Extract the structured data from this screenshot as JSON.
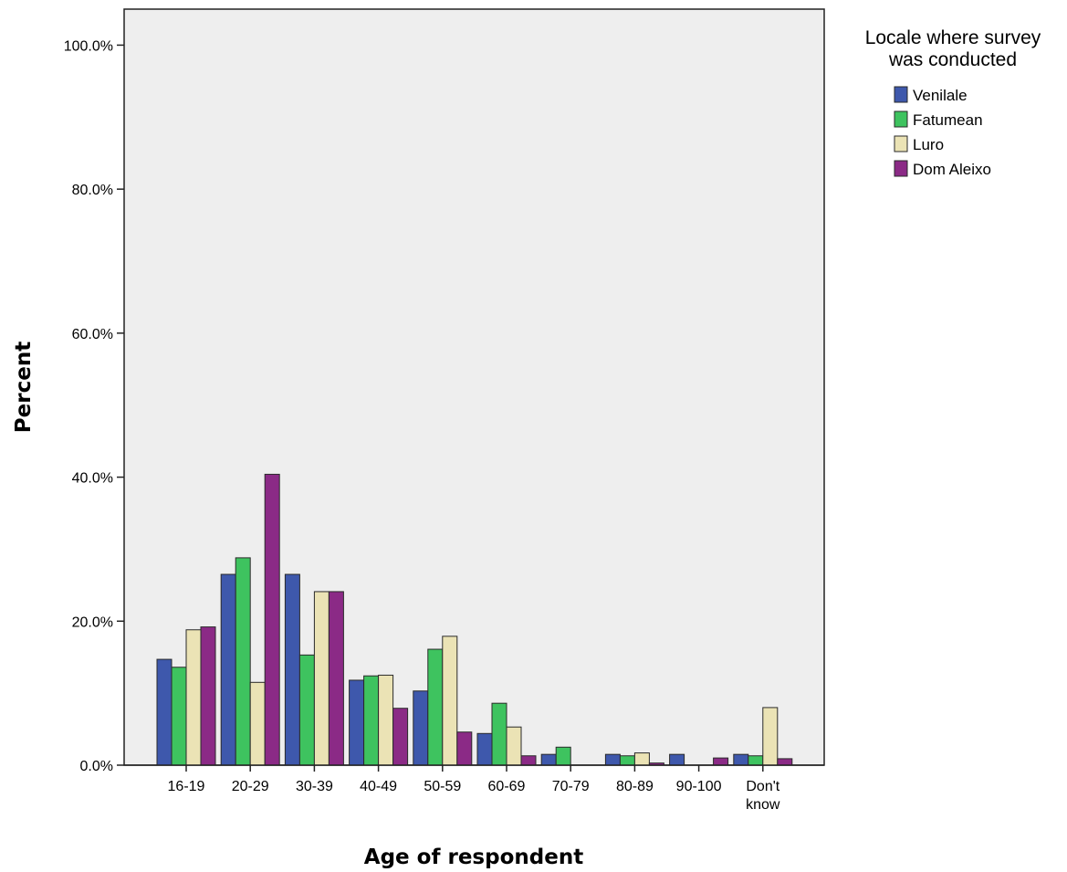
{
  "chart_data": {
    "type": "bar",
    "xlabel": "Age of respondent",
    "ylabel": "Percent",
    "ylim": [
      0,
      105
    ],
    "yticks": [
      0,
      20,
      40,
      60,
      80,
      100
    ],
    "ytick_labels": [
      "0.0%",
      "20.0%",
      "40.0%",
      "60.0%",
      "80.0%",
      "100.0%"
    ],
    "categories": [
      "16-19",
      "20-29",
      "30-39",
      "40-49",
      "50-59",
      "60-69",
      "70-79",
      "80-89",
      "90-100",
      "Don't know"
    ],
    "category_lines": [
      [
        "16-19"
      ],
      [
        "20-29"
      ],
      [
        "30-39"
      ],
      [
        "40-49"
      ],
      [
        "50-59"
      ],
      [
        "60-69"
      ],
      [
        "70-79"
      ],
      [
        "80-89"
      ],
      [
        "90-100"
      ],
      [
        "Don't",
        "know"
      ]
    ],
    "legend": {
      "title_lines": [
        "Locale where survey",
        "was conducted"
      ],
      "placement": "top-right, outside plot"
    },
    "grid": false,
    "plot_background": "#eeeeee",
    "series": [
      {
        "name": "Venilale",
        "color": "#3e58ac",
        "values": [
          14.7,
          26.5,
          26.5,
          11.8,
          10.3,
          4.4,
          1.5,
          1.5,
          1.5,
          1.5
        ]
      },
      {
        "name": "Fatumean",
        "color": "#3ec35f",
        "values": [
          13.6,
          28.8,
          15.3,
          12.4,
          16.1,
          8.6,
          2.5,
          1.3,
          0,
          1.3
        ]
      },
      {
        "name": "Luro",
        "color": "#ebe3b5",
        "values": [
          18.8,
          11.5,
          24.1,
          12.5,
          17.9,
          5.3,
          0,
          1.7,
          0,
          8.0
        ]
      },
      {
        "name": "Dom Aleixo",
        "color": "#8b2a86",
        "values": [
          19.2,
          40.4,
          24.1,
          7.9,
          4.6,
          1.3,
          0,
          0.3,
          1.0,
          0.9
        ]
      }
    ]
  }
}
